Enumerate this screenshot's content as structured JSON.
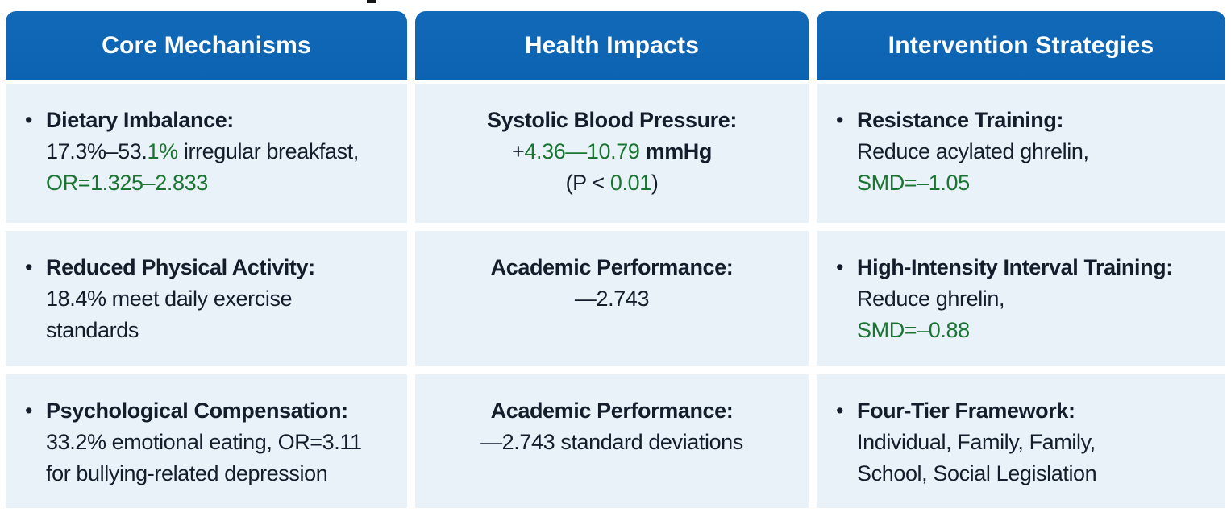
{
  "glyphs": {
    "bullet": "•"
  },
  "colors": {
    "header_bg": "#0e67b5",
    "header_text": "#ffffff",
    "cell_bg": "#e9f2f9",
    "body_text": "#141d2b",
    "accent_green": "#1b7532",
    "page_bg": "#ffffff"
  },
  "table": {
    "columns": [
      {
        "header": "Core Mechanisms",
        "cells": [
          {
            "lines": [
              [
                "Dietary Imbalance:"
              ],
              [
                "17.3%–53.",
                "1%",
                " irregular breakfast,"
              ],
              [
                "OR=1.325–2.833"
              ]
            ]
          },
          {
            "lines": [
              [
                "Reduced Physical Activity:"
              ],
              [
                "18.4% meet daily exercise"
              ],
              [
                "standards"
              ]
            ]
          },
          {
            "lines": [
              [
                "Psychological Compensation:"
              ],
              [
                "33.2% emotional eating, OR=3.11"
              ],
              [
                "for bullying-related depression"
              ]
            ]
          }
        ]
      },
      {
        "header": "Health Impacts",
        "cells": [
          {
            "lines": [
              [
                "Systolic Blood Pressure:"
              ],
              [
                "+",
                "4.36—10.79",
                " mmHg"
              ],
              [
                "(P < ",
                "0.01",
                ")"
              ]
            ]
          },
          {
            "lines": [
              [
                "Academic Performance:"
              ],
              [
                "—2.743"
              ]
            ]
          },
          {
            "lines": [
              [
                "Academic Performance:"
              ],
              [
                "—2.743 standard deviations"
              ]
            ]
          }
        ]
      },
      {
        "header": "Intervention Strategies",
        "cells": [
          {
            "lines": [
              [
                "Resistance Training:"
              ],
              [
                "Reduce acylated ghrelin,"
              ],
              [
                "SMD=–1.05"
              ]
            ]
          },
          {
            "lines": [
              [
                "High-Intensity Interval Training:"
              ],
              [
                "Reduce ghrelin,"
              ],
              [
                "SMD=–0.88"
              ]
            ]
          },
          {
            "lines": [
              [
                "Four-Tier Framework:"
              ],
              [
                "Individual, Family, Family,"
              ],
              [
                "School, Social Legislation"
              ]
            ]
          }
        ]
      }
    ]
  }
}
